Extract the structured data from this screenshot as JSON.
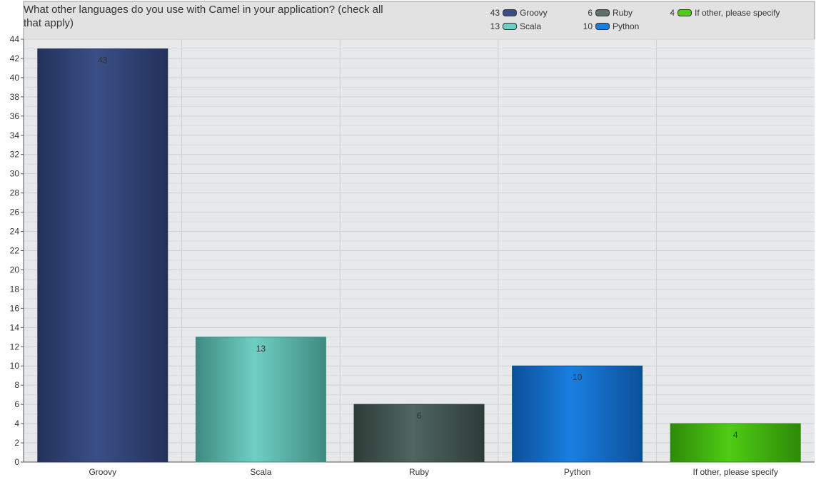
{
  "chart_data": {
    "type": "bar",
    "title": "What other languages do you use with Camel in your application? (check all that apply)",
    "title_line1": "What other languages do you use with Camel in your application? (check all",
    "title_line2": "that apply)",
    "categories": [
      "Groovy",
      "Scala",
      "Ruby",
      "Python",
      "If other, please specify"
    ],
    "values": [
      43,
      13,
      6,
      10,
      4
    ],
    "colors": [
      "#3a4f86",
      "#6fcfc3",
      "#4f6660",
      "#1a7fe0",
      "#4fcc14"
    ],
    "colors_dark": [
      "#24325a",
      "#3f8a80",
      "#2e3c38",
      "#0c4f9a",
      "#2e8a08"
    ],
    "ylim": [
      0,
      44
    ],
    "ytick_step": 2,
    "grid": true,
    "legend": [
      {
        "count": "43",
        "label": "Groovy",
        "color": "#3a4f86"
      },
      {
        "count": "6",
        "label": "Ruby",
        "color": "#5f706b"
      },
      {
        "count": "4",
        "label": "If other, please specify",
        "color": "#4fcc14"
      },
      {
        "count": "13",
        "label": "Scala",
        "color": "#6fcfc3"
      },
      {
        "count": "10",
        "label": "Python",
        "color": "#1a7fe0"
      }
    ],
    "legend_placement": "top-right"
  }
}
